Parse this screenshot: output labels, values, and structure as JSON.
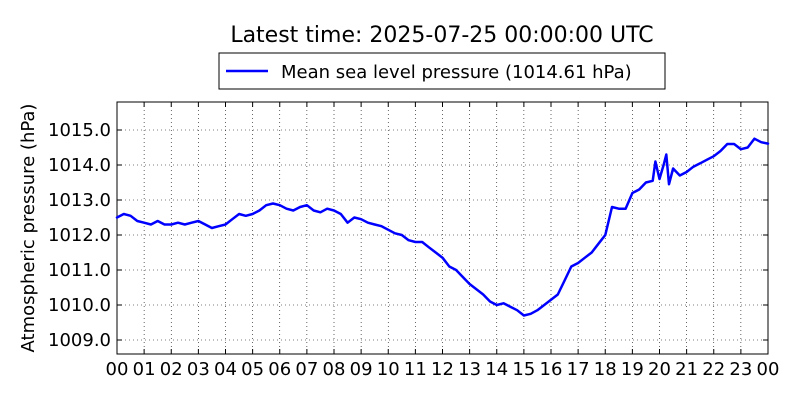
{
  "chart_data": {
    "type": "line",
    "title": "Latest time: 2025-07-25 00:00:00 UTC",
    "ylabel": "Atmospheric pressure (hPa)",
    "xlabel": "",
    "x_unit": "hour of day (UTC)",
    "xlim": [
      0,
      24
    ],
    "ylim": [
      1008.6,
      1015.8
    ],
    "x_ticks": [
      0,
      1,
      2,
      3,
      4,
      5,
      6,
      7,
      8,
      9,
      10,
      11,
      12,
      13,
      14,
      15,
      16,
      17,
      18,
      19,
      20,
      21,
      22,
      23,
      24
    ],
    "x_tick_labels": [
      "00",
      "01",
      "02",
      "03",
      "04",
      "05",
      "06",
      "07",
      "08",
      "09",
      "10",
      "11",
      "12",
      "13",
      "14",
      "15",
      "16",
      "17",
      "18",
      "19",
      "20",
      "21",
      "22",
      "23",
      "00"
    ],
    "y_ticks": [
      1009.0,
      1010.0,
      1011.0,
      1012.0,
      1013.0,
      1014.0,
      1015.0
    ],
    "y_tick_labels": [
      "1009.0",
      "1010.0",
      "1011.0",
      "1012.0",
      "1013.0",
      "1014.0",
      "1015.0"
    ],
    "grid": true,
    "legend_position": "top-center",
    "series": [
      {
        "name": "Mean sea level pressure (1014.61 hPa)",
        "color": "#0000ff",
        "x": [
          0.0,
          0.25,
          0.5,
          0.75,
          1.0,
          1.25,
          1.5,
          1.75,
          2.0,
          2.25,
          2.5,
          2.75,
          3.0,
          3.25,
          3.5,
          3.75,
          4.0,
          4.25,
          4.5,
          4.75,
          5.0,
          5.25,
          5.5,
          5.75,
          6.0,
          6.25,
          6.5,
          6.75,
          7.0,
          7.25,
          7.5,
          7.75,
          8.0,
          8.25,
          8.5,
          8.75,
          9.0,
          9.25,
          9.5,
          9.75,
          10.0,
          10.25,
          10.5,
          10.75,
          11.0,
          11.25,
          11.5,
          11.75,
          12.0,
          12.25,
          12.5,
          12.75,
          13.0,
          13.25,
          13.5,
          13.75,
          14.0,
          14.25,
          14.5,
          14.75,
          15.0,
          15.25,
          15.5,
          15.75,
          16.0,
          16.25,
          16.5,
          16.75,
          17.0,
          17.25,
          17.5,
          17.75,
          18.0,
          18.25,
          18.5,
          18.75,
          19.0,
          19.25,
          19.5,
          19.75,
          19.85,
          20.0,
          20.15,
          20.25,
          20.35,
          20.5,
          20.75,
          21.0,
          21.25,
          21.5,
          21.75,
          22.0,
          22.25,
          22.5,
          22.75,
          23.0,
          23.25,
          23.5,
          23.75,
          24.0
        ],
        "y": [
          1012.5,
          1012.6,
          1012.55,
          1012.4,
          1012.35,
          1012.3,
          1012.4,
          1012.3,
          1012.3,
          1012.35,
          1012.3,
          1012.35,
          1012.4,
          1012.3,
          1012.2,
          1012.25,
          1012.3,
          1012.45,
          1012.6,
          1012.55,
          1012.6,
          1012.7,
          1012.85,
          1012.9,
          1012.85,
          1012.75,
          1012.7,
          1012.8,
          1012.85,
          1012.7,
          1012.65,
          1012.75,
          1012.7,
          1012.6,
          1012.35,
          1012.5,
          1012.45,
          1012.35,
          1012.3,
          1012.25,
          1012.15,
          1012.05,
          1012.0,
          1011.85,
          1011.8,
          1011.8,
          1011.65,
          1011.5,
          1011.35,
          1011.1,
          1011.0,
          1010.8,
          1010.6,
          1010.45,
          1010.3,
          1010.1,
          1010.0,
          1010.05,
          1009.95,
          1009.85,
          1009.7,
          1009.75,
          1009.85,
          1010.0,
          1010.15,
          1010.3,
          1010.7,
          1011.1,
          1011.2,
          1011.35,
          1011.5,
          1011.75,
          1012.0,
          1012.8,
          1012.75,
          1012.75,
          1013.2,
          1013.3,
          1013.5,
          1013.55,
          1014.1,
          1013.6,
          1014.0,
          1014.3,
          1013.45,
          1013.9,
          1013.7,
          1013.8,
          1013.95,
          1014.05,
          1014.15,
          1014.25,
          1014.4,
          1014.6,
          1014.6,
          1014.45,
          1014.5,
          1014.75,
          1014.65,
          1014.61
        ]
      }
    ]
  }
}
